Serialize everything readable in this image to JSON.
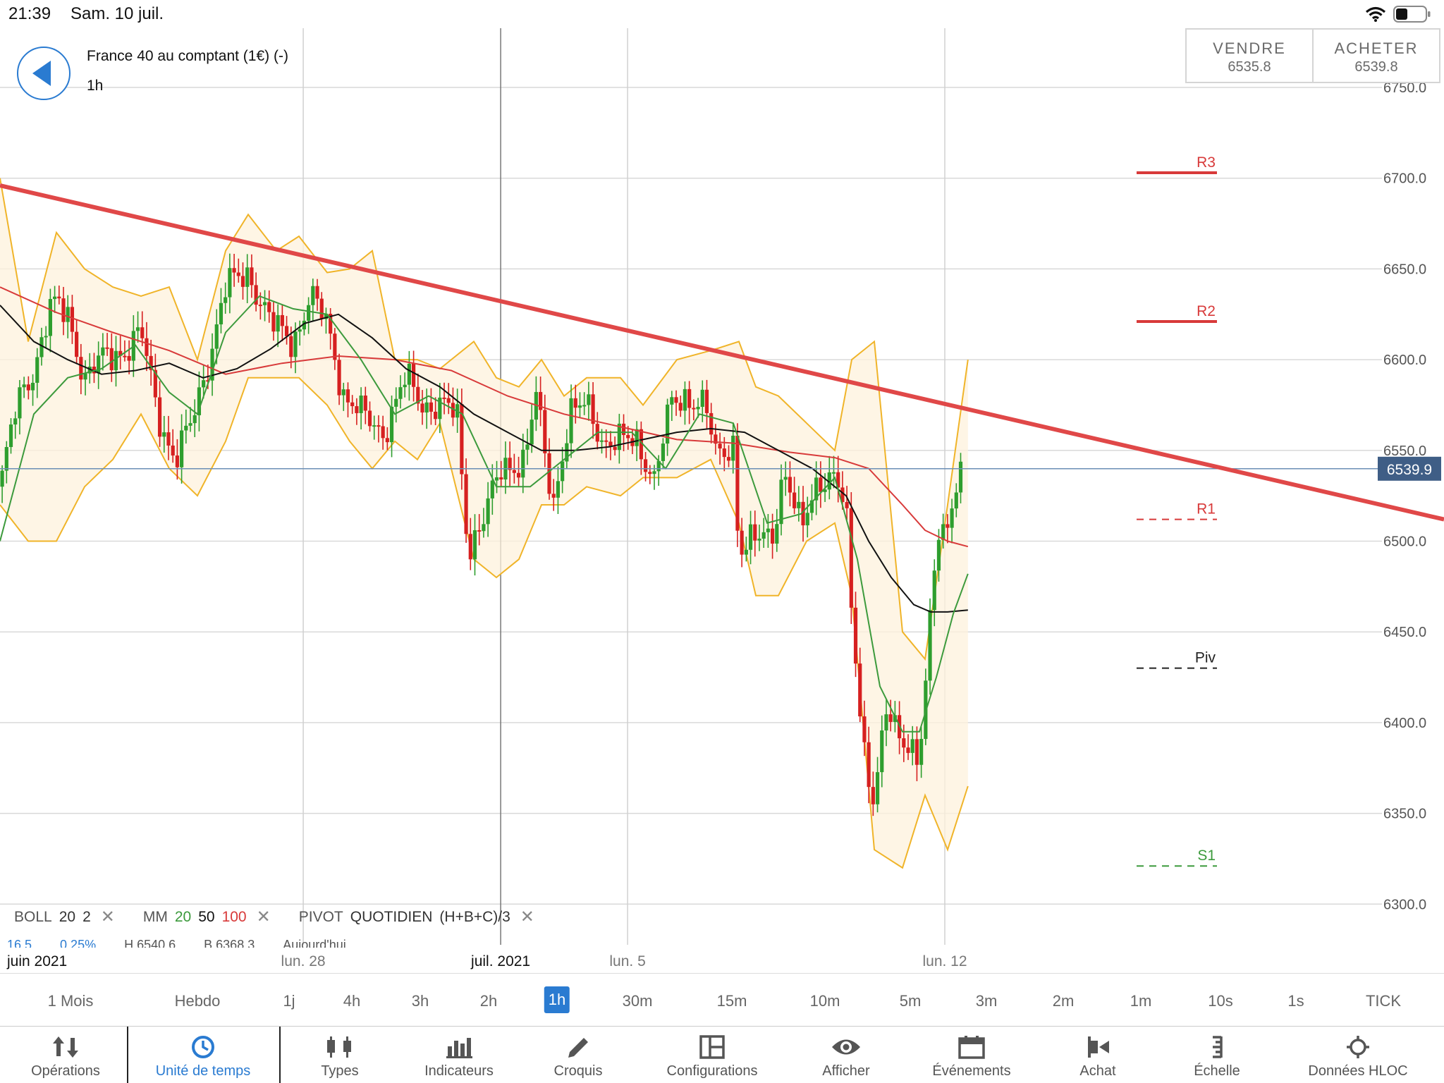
{
  "status_bar": {
    "time": "21:39",
    "date": "Sam. 10 juil."
  },
  "instrument": {
    "title": "France 40 au comptant (1€) (-)",
    "timeframe": "1h"
  },
  "trade": {
    "sell_label": "VENDRE",
    "sell_price": "6535.8",
    "buy_label": "ACHETER",
    "buy_price": "6539.8"
  },
  "colors": {
    "accent": "#2a7bd1",
    "trendline": "#e04848",
    "bollinger": "#f0b429",
    "ma20": "#3c9a3c",
    "ma50": "#111111",
    "ma100": "#d83a3a",
    "bull": "#2e9e2e",
    "bear": "#d62020"
  },
  "indicators": {
    "boll": {
      "name": "BOLL",
      "p1": "20",
      "p2": "2"
    },
    "mm": {
      "name": "MM",
      "p1": "20",
      "p2": "50",
      "p3": "100"
    },
    "pivot": {
      "name": "PIVOT",
      "p1": "QUOTIDIEN",
      "p2": "(H+B+C)/3"
    },
    "values": [
      "16.5",
      "0.25%",
      "H 6540.6",
      "B 6368.3",
      "Aujourd'hui"
    ]
  },
  "timeframes": [
    "1 Mois",
    "Hebdo",
    "1j",
    "4h",
    "3h",
    "2h",
    "1h",
    "30m",
    "15m",
    "10m",
    "5m",
    "3m",
    "2m",
    "1m",
    "10s",
    "1s",
    "TICK"
  ],
  "active_timeframe": "1h",
  "toolbar": [
    "Opérations",
    "Unité de temps",
    "Types",
    "Indicateurs",
    "Croquis",
    "Configurations",
    "Afficher",
    "Événements",
    "Achat",
    "Échelle",
    "Données HLOC"
  ],
  "active_tool": "Unité de temps",
  "chart_data": {
    "type": "candlestick",
    "instrument": "France 40 au comptant (1€)",
    "interval": "1h",
    "ylim": [
      6300,
      6760
    ],
    "y_ticks": [
      6300,
      6350,
      6400,
      6450,
      6500,
      6550,
      6600,
      6650,
      6700,
      6750
    ],
    "y_tick_labels": [
      "6300.0",
      "6350.0",
      "6400.0",
      "6450.0",
      "6500.0",
      "6550.0",
      "6600.0",
      "6650.0",
      "6700.0",
      "6750.0"
    ],
    "x_labels": [
      {
        "label": "juin 2021",
        "x": 0
      },
      {
        "label": "lun. 28",
        "x": 0.2688
      },
      {
        "label": "juil. 2021",
        "x": 0.4438
      },
      {
        "label": "lun. 5",
        "x": 0.5563
      },
      {
        "label": "lun. 12",
        "x": 0.8375
      }
    ],
    "current_price": 6539.9,
    "current_price_label": "6539.9",
    "pivots": [
      {
        "label": "R3",
        "value": 6703
      },
      {
        "label": "R2",
        "value": 6621
      },
      {
        "label": "R1",
        "value": 6512
      },
      {
        "label": "Piv",
        "value": 6430
      },
      {
        "label": "S1",
        "value": 6321
      }
    ],
    "trendline": [
      {
        "x": 0,
        "y": 6696
      },
      {
        "x": 1,
        "y": 6512
      }
    ],
    "price_path": [
      {
        "x": 0.0,
        "y": 6530
      },
      {
        "x": 0.015,
        "y": 6575
      },
      {
        "x": 0.03,
        "y": 6595
      },
      {
        "x": 0.045,
        "y": 6630
      },
      {
        "x": 0.06,
        "y": 6625
      },
      {
        "x": 0.075,
        "y": 6590
      },
      {
        "x": 0.09,
        "y": 6600
      },
      {
        "x": 0.11,
        "y": 6605
      },
      {
        "x": 0.125,
        "y": 6615
      },
      {
        "x": 0.14,
        "y": 6570
      },
      {
        "x": 0.155,
        "y": 6545
      },
      {
        "x": 0.17,
        "y": 6565
      },
      {
        "x": 0.185,
        "y": 6600
      },
      {
        "x": 0.2,
        "y": 6640
      },
      {
        "x": 0.22,
        "y": 6648
      },
      {
        "x": 0.24,
        "y": 6620
      },
      {
        "x": 0.26,
        "y": 6610
      },
      {
        "x": 0.275,
        "y": 6635
      },
      {
        "x": 0.29,
        "y": 6620
      },
      {
        "x": 0.305,
        "y": 6580
      },
      {
        "x": 0.32,
        "y": 6570
      },
      {
        "x": 0.34,
        "y": 6560
      },
      {
        "x": 0.36,
        "y": 6590
      },
      {
        "x": 0.375,
        "y": 6575
      },
      {
        "x": 0.39,
        "y": 6575
      },
      {
        "x": 0.405,
        "y": 6570
      },
      {
        "x": 0.415,
        "y": 6495
      },
      {
        "x": 0.43,
        "y": 6515
      },
      {
        "x": 0.445,
        "y": 6540
      },
      {
        "x": 0.465,
        "y": 6545
      },
      {
        "x": 0.475,
        "y": 6580
      },
      {
        "x": 0.49,
        "y": 6520
      },
      {
        "x": 0.505,
        "y": 6570
      },
      {
        "x": 0.52,
        "y": 6575
      },
      {
        "x": 0.535,
        "y": 6555
      },
      {
        "x": 0.55,
        "y": 6555
      },
      {
        "x": 0.565,
        "y": 6555
      },
      {
        "x": 0.58,
        "y": 6535
      },
      {
        "x": 0.595,
        "y": 6575
      },
      {
        "x": 0.61,
        "y": 6580
      },
      {
        "x": 0.625,
        "y": 6575
      },
      {
        "x": 0.635,
        "y": 6545
      },
      {
        "x": 0.65,
        "y": 6555
      },
      {
        "x": 0.655,
        "y": 6495
      },
      {
        "x": 0.67,
        "y": 6500
      },
      {
        "x": 0.685,
        "y": 6505
      },
      {
        "x": 0.695,
        "y": 6540
      },
      {
        "x": 0.71,
        "y": 6505
      },
      {
        "x": 0.725,
        "y": 6535
      },
      {
        "x": 0.74,
        "y": 6535
      },
      {
        "x": 0.75,
        "y": 6515
      },
      {
        "x": 0.755,
        "y": 6460
      },
      {
        "x": 0.765,
        "y": 6390
      },
      {
        "x": 0.775,
        "y": 6355
      },
      {
        "x": 0.785,
        "y": 6405
      },
      {
        "x": 0.795,
        "y": 6395
      },
      {
        "x": 0.805,
        "y": 6390
      },
      {
        "x": 0.815,
        "y": 6380
      },
      {
        "x": 0.82,
        "y": 6415
      },
      {
        "x": 0.83,
        "y": 6500
      },
      {
        "x": 0.84,
        "y": 6510
      },
      {
        "x": 0.845,
        "y": 6530
      },
      {
        "x": 0.85,
        "y": 6535
      },
      {
        "x": 0.8535,
        "y": 6539.9
      }
    ],
    "ma20": [
      {
        "x": 0.0,
        "y": 6500
      },
      {
        "x": 0.03,
        "y": 6570
      },
      {
        "x": 0.06,
        "y": 6590
      },
      {
        "x": 0.09,
        "y": 6595
      },
      {
        "x": 0.12,
        "y": 6608
      },
      {
        "x": 0.15,
        "y": 6582
      },
      {
        "x": 0.175,
        "y": 6570
      },
      {
        "x": 0.2,
        "y": 6615
      },
      {
        "x": 0.23,
        "y": 6635
      },
      {
        "x": 0.26,
        "y": 6628
      },
      {
        "x": 0.29,
        "y": 6625
      },
      {
        "x": 0.32,
        "y": 6600
      },
      {
        "x": 0.35,
        "y": 6570
      },
      {
        "x": 0.38,
        "y": 6580
      },
      {
        "x": 0.41,
        "y": 6570
      },
      {
        "x": 0.44,
        "y": 6530
      },
      {
        "x": 0.47,
        "y": 6530
      },
      {
        "x": 0.5,
        "y": 6545
      },
      {
        "x": 0.53,
        "y": 6560
      },
      {
        "x": 0.56,
        "y": 6560
      },
      {
        "x": 0.59,
        "y": 6540
      },
      {
        "x": 0.62,
        "y": 6570
      },
      {
        "x": 0.65,
        "y": 6565
      },
      {
        "x": 0.68,
        "y": 6510
      },
      {
        "x": 0.71,
        "y": 6515
      },
      {
        "x": 0.74,
        "y": 6535
      },
      {
        "x": 0.76,
        "y": 6490
      },
      {
        "x": 0.78,
        "y": 6420
      },
      {
        "x": 0.8,
        "y": 6395
      },
      {
        "x": 0.815,
        "y": 6395
      },
      {
        "x": 0.83,
        "y": 6425
      },
      {
        "x": 0.845,
        "y": 6460
      },
      {
        "x": 0.858,
        "y": 6482
      }
    ],
    "ma50": [
      {
        "x": 0.0,
        "y": 6630
      },
      {
        "x": 0.03,
        "y": 6610
      },
      {
        "x": 0.06,
        "y": 6600
      },
      {
        "x": 0.09,
        "y": 6592
      },
      {
        "x": 0.12,
        "y": 6594
      },
      {
        "x": 0.15,
        "y": 6598
      },
      {
        "x": 0.18,
        "y": 6590
      },
      {
        "x": 0.21,
        "y": 6595
      },
      {
        "x": 0.24,
        "y": 6606
      },
      {
        "x": 0.27,
        "y": 6620
      },
      {
        "x": 0.3,
        "y": 6625
      },
      {
        "x": 0.33,
        "y": 6612
      },
      {
        "x": 0.36,
        "y": 6595
      },
      {
        "x": 0.39,
        "y": 6585
      },
      {
        "x": 0.42,
        "y": 6570
      },
      {
        "x": 0.45,
        "y": 6560
      },
      {
        "x": 0.48,
        "y": 6550
      },
      {
        "x": 0.51,
        "y": 6550
      },
      {
        "x": 0.54,
        "y": 6552
      },
      {
        "x": 0.57,
        "y": 6556
      },
      {
        "x": 0.6,
        "y": 6560
      },
      {
        "x": 0.63,
        "y": 6562
      },
      {
        "x": 0.66,
        "y": 6560
      },
      {
        "x": 0.69,
        "y": 6550
      },
      {
        "x": 0.72,
        "y": 6540
      },
      {
        "x": 0.75,
        "y": 6525
      },
      {
        "x": 0.77,
        "y": 6500
      },
      {
        "x": 0.79,
        "y": 6480
      },
      {
        "x": 0.81,
        "y": 6465
      },
      {
        "x": 0.825,
        "y": 6461
      },
      {
        "x": 0.84,
        "y": 6461
      },
      {
        "x": 0.858,
        "y": 6462
      }
    ],
    "ma100": [
      {
        "x": 0.0,
        "y": 6640
      },
      {
        "x": 0.05,
        "y": 6626
      },
      {
        "x": 0.1,
        "y": 6615
      },
      {
        "x": 0.15,
        "y": 6605
      },
      {
        "x": 0.2,
        "y": 6592
      },
      {
        "x": 0.25,
        "y": 6598
      },
      {
        "x": 0.3,
        "y": 6602
      },
      {
        "x": 0.35,
        "y": 6600
      },
      {
        "x": 0.4,
        "y": 6594
      },
      {
        "x": 0.45,
        "y": 6580
      },
      {
        "x": 0.5,
        "y": 6570
      },
      {
        "x": 0.55,
        "y": 6563
      },
      {
        "x": 0.6,
        "y": 6556
      },
      {
        "x": 0.65,
        "y": 6554
      },
      {
        "x": 0.7,
        "y": 6549
      },
      {
        "x": 0.74,
        "y": 6546
      },
      {
        "x": 0.77,
        "y": 6540
      },
      {
        "x": 0.8,
        "y": 6520
      },
      {
        "x": 0.82,
        "y": 6506
      },
      {
        "x": 0.84,
        "y": 6500
      },
      {
        "x": 0.858,
        "y": 6497
      }
    ],
    "boll_upper": [
      {
        "x": 0.0,
        "y": 6700
      },
      {
        "x": 0.025,
        "y": 6610
      },
      {
        "x": 0.05,
        "y": 6670
      },
      {
        "x": 0.075,
        "y": 6650
      },
      {
        "x": 0.1,
        "y": 6640
      },
      {
        "x": 0.125,
        "y": 6635
      },
      {
        "x": 0.15,
        "y": 6640
      },
      {
        "x": 0.175,
        "y": 6600
      },
      {
        "x": 0.2,
        "y": 6660
      },
      {
        "x": 0.22,
        "y": 6680
      },
      {
        "x": 0.245,
        "y": 6660
      },
      {
        "x": 0.265,
        "y": 6668
      },
      {
        "x": 0.29,
        "y": 6648
      },
      {
        "x": 0.31,
        "y": 6650
      },
      {
        "x": 0.33,
        "y": 6660
      },
      {
        "x": 0.35,
        "y": 6600
      },
      {
        "x": 0.37,
        "y": 6600
      },
      {
        "x": 0.39,
        "y": 6595
      },
      {
        "x": 0.42,
        "y": 6610
      },
      {
        "x": 0.44,
        "y": 6590
      },
      {
        "x": 0.46,
        "y": 6585
      },
      {
        "x": 0.48,
        "y": 6600
      },
      {
        "x": 0.5,
        "y": 6580
      },
      {
        "x": 0.52,
        "y": 6590
      },
      {
        "x": 0.55,
        "y": 6590
      },
      {
        "x": 0.57,
        "y": 6575
      },
      {
        "x": 0.6,
        "y": 6600
      },
      {
        "x": 0.63,
        "y": 6605
      },
      {
        "x": 0.655,
        "y": 6610
      },
      {
        "x": 0.67,
        "y": 6585
      },
      {
        "x": 0.69,
        "y": 6580
      },
      {
        "x": 0.715,
        "y": 6565
      },
      {
        "x": 0.74,
        "y": 6550
      },
      {
        "x": 0.755,
        "y": 6600
      },
      {
        "x": 0.775,
        "y": 6610
      },
      {
        "x": 0.8,
        "y": 6450
      },
      {
        "x": 0.82,
        "y": 6435
      },
      {
        "x": 0.84,
        "y": 6520
      },
      {
        "x": 0.858,
        "y": 6600
      }
    ],
    "boll_lower": [
      {
        "x": 0.0,
        "y": 6520
      },
      {
        "x": 0.025,
        "y": 6500
      },
      {
        "x": 0.05,
        "y": 6500
      },
      {
        "x": 0.075,
        "y": 6530
      },
      {
        "x": 0.1,
        "y": 6545
      },
      {
        "x": 0.125,
        "y": 6570
      },
      {
        "x": 0.15,
        "y": 6540
      },
      {
        "x": 0.175,
        "y": 6525
      },
      {
        "x": 0.2,
        "y": 6555
      },
      {
        "x": 0.22,
        "y": 6590
      },
      {
        "x": 0.245,
        "y": 6590
      },
      {
        "x": 0.265,
        "y": 6590
      },
      {
        "x": 0.29,
        "y": 6575
      },
      {
        "x": 0.31,
        "y": 6555
      },
      {
        "x": 0.33,
        "y": 6540
      },
      {
        "x": 0.35,
        "y": 6555
      },
      {
        "x": 0.37,
        "y": 6545
      },
      {
        "x": 0.39,
        "y": 6565
      },
      {
        "x": 0.42,
        "y": 6490
      },
      {
        "x": 0.44,
        "y": 6480
      },
      {
        "x": 0.46,
        "y": 6490
      },
      {
        "x": 0.48,
        "y": 6520
      },
      {
        "x": 0.5,
        "y": 6520
      },
      {
        "x": 0.52,
        "y": 6530
      },
      {
        "x": 0.55,
        "y": 6525
      },
      {
        "x": 0.57,
        "y": 6535
      },
      {
        "x": 0.6,
        "y": 6535
      },
      {
        "x": 0.63,
        "y": 6545
      },
      {
        "x": 0.655,
        "y": 6510
      },
      {
        "x": 0.67,
        "y": 6470
      },
      {
        "x": 0.69,
        "y": 6470
      },
      {
        "x": 0.715,
        "y": 6500
      },
      {
        "x": 0.74,
        "y": 6510
      },
      {
        "x": 0.755,
        "y": 6470
      },
      {
        "x": 0.775,
        "y": 6330
      },
      {
        "x": 0.8,
        "y": 6320
      },
      {
        "x": 0.82,
        "y": 6360
      },
      {
        "x": 0.84,
        "y": 6330
      },
      {
        "x": 0.858,
        "y": 6365
      }
    ]
  }
}
